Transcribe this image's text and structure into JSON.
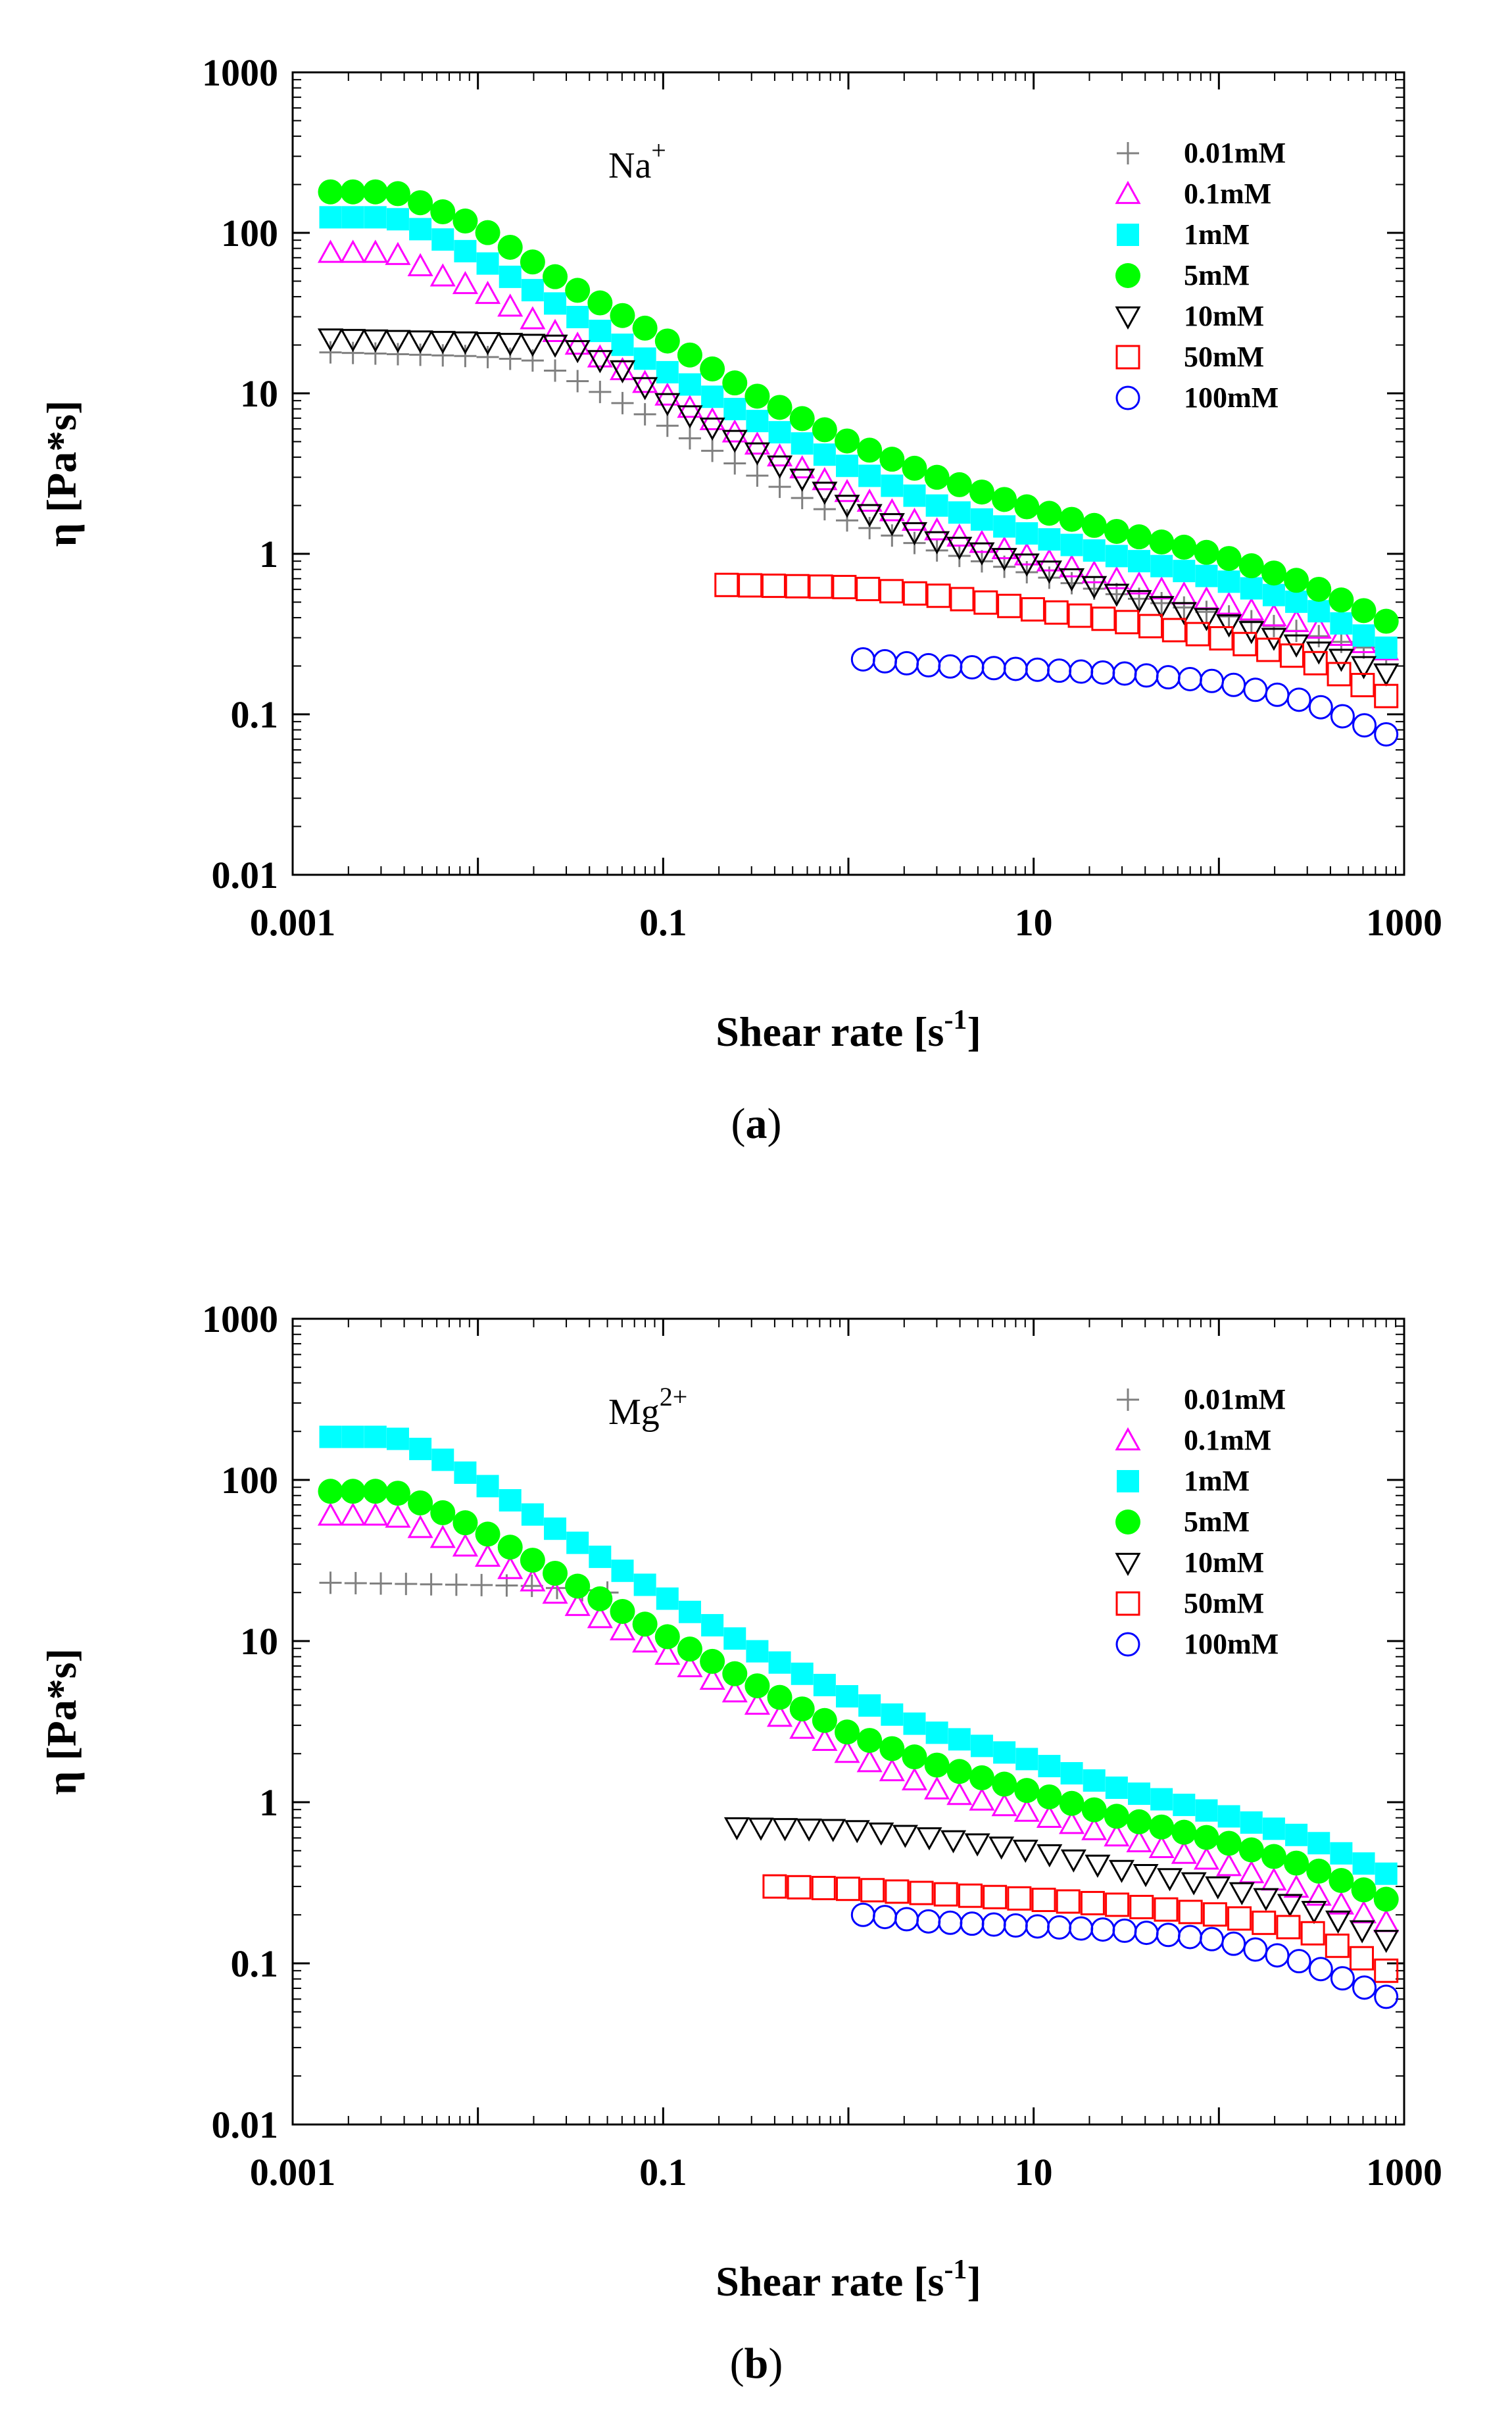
{
  "chart_data": [
    {
      "type": "scatter",
      "panel": "a",
      "caption_letter": "a",
      "ion": {
        "base": "Na",
        "charge": "+"
      },
      "xlabel": "Shear rate [s",
      "xlabel_sup": "-1",
      "xlabel_end": "]",
      "ylabel": "η [Pa*s]",
      "xscale": "log",
      "yscale": "log",
      "xlim": [
        0.001,
        1000
      ],
      "ylim": [
        0.01,
        1000
      ],
      "xticks": [
        0.001,
        0.1,
        10,
        1000
      ],
      "xtick_labels": [
        "0.001",
        "0.1",
        "10",
        "1000"
      ],
      "yticks": [
        0.01,
        0.1,
        1,
        10,
        100,
        1000
      ],
      "ytick_labels": [
        "0.01",
        "0.1",
        "1",
        "10",
        "100",
        "1000"
      ],
      "legend_position": "top-right",
      "series": [
        {
          "name": "0.01mM",
          "marker": "plus",
          "color": "#808080",
          "x_range": [
            0.0016,
            800
          ],
          "points": 48,
          "anchors": [
            [
              0.0016,
              18
            ],
            [
              0.01,
              17
            ],
            [
              0.02,
              16
            ],
            [
              0.04,
              11
            ],
            [
              0.1,
              6.5
            ],
            [
              0.3,
              3.2
            ],
            [
              1,
              1.6
            ],
            [
              3,
              1.05
            ],
            [
              10,
              0.75
            ],
            [
              30,
              0.55
            ],
            [
              100,
              0.42
            ],
            [
              300,
              0.32
            ],
            [
              800,
              0.24
            ]
          ]
        },
        {
          "name": "0.1mM",
          "marker": "triangle-up",
          "color": "#ff00ff",
          "x_range": [
            0.0016,
            800
          ],
          "points": 48,
          "anchors": [
            [
              0.0016,
              75
            ],
            [
              0.0035,
              75
            ],
            [
              0.006,
              55
            ],
            [
              0.01,
              45
            ],
            [
              0.03,
              22
            ],
            [
              0.1,
              10
            ],
            [
              0.3,
              5
            ],
            [
              1,
              2.4
            ],
            [
              3,
              1.4
            ],
            [
              10,
              0.95
            ],
            [
              30,
              0.68
            ],
            [
              100,
              0.5
            ],
            [
              300,
              0.36
            ],
            [
              800,
              0.25
            ]
          ]
        },
        {
          "name": "1mM",
          "marker": "square-filled",
          "color": "#00ffff",
          "x_range": [
            0.0016,
            800
          ],
          "points": 48,
          "anchors": [
            [
              0.0016,
              125
            ],
            [
              0.0035,
              125
            ],
            [
              0.006,
              95
            ],
            [
              0.01,
              70
            ],
            [
              0.03,
              33
            ],
            [
              0.1,
              14
            ],
            [
              0.3,
              7
            ],
            [
              1,
              3.5
            ],
            [
              3,
              2
            ],
            [
              10,
              1.3
            ],
            [
              30,
              0.95
            ],
            [
              100,
              0.7
            ],
            [
              300,
              0.48
            ],
            [
              800,
              0.26
            ]
          ]
        },
        {
          "name": "5mM",
          "marker": "circle-filled",
          "color": "#00ff00",
          "x_range": [
            0.0016,
            800
          ],
          "points": 48,
          "anchors": [
            [
              0.0016,
              180
            ],
            [
              0.0035,
              180
            ],
            [
              0.006,
              140
            ],
            [
              0.01,
              110
            ],
            [
              0.03,
              48
            ],
            [
              0.1,
              22
            ],
            [
              0.3,
              10
            ],
            [
              1,
              5
            ],
            [
              3,
              3
            ],
            [
              10,
              1.9
            ],
            [
              30,
              1.35
            ],
            [
              100,
              0.98
            ],
            [
              300,
              0.65
            ],
            [
              800,
              0.38
            ]
          ]
        },
        {
          "name": "10mM",
          "marker": "triangle-down",
          "color": "#000000",
          "x_range": [
            0.0016,
            800
          ],
          "points": 48,
          "anchors": [
            [
              0.0016,
              22
            ],
            [
              0.01,
              21
            ],
            [
              0.03,
              20
            ],
            [
              0.06,
              14
            ],
            [
              0.1,
              9
            ],
            [
              0.3,
              4.5
            ],
            [
              1,
              2
            ],
            [
              3,
              1.2
            ],
            [
              10,
              0.85
            ],
            [
              30,
              0.55
            ],
            [
              100,
              0.38
            ],
            [
              300,
              0.26
            ],
            [
              800,
              0.18
            ]
          ]
        },
        {
          "name": "50mM",
          "marker": "square-open",
          "color": "#ff0000",
          "x_range": [
            0.22,
            800
          ],
          "points": 29,
          "anchors": [
            [
              0.22,
              0.64
            ],
            [
              1,
              0.62
            ],
            [
              3,
              0.55
            ],
            [
              10,
              0.45
            ],
            [
              30,
              0.38
            ],
            [
              100,
              0.3
            ],
            [
              300,
              0.22
            ],
            [
              800,
              0.13
            ]
          ]
        },
        {
          "name": "100mM",
          "marker": "circle-open",
          "color": "#0000ff",
          "x_range": [
            1.2,
            800
          ],
          "points": 25,
          "anchors": [
            [
              1.2,
              0.22
            ],
            [
              3,
              0.2
            ],
            [
              10,
              0.19
            ],
            [
              30,
              0.18
            ],
            [
              100,
              0.16
            ],
            [
              300,
              0.12
            ],
            [
              800,
              0.075
            ]
          ]
        }
      ]
    },
    {
      "type": "scatter",
      "panel": "b",
      "caption_letter": "b",
      "ion": {
        "base": "Mg",
        "charge": "2+"
      },
      "xlabel": "Shear rate [s",
      "xlabel_sup": "-1",
      "xlabel_end": "]",
      "ylabel": "η [Pa*s]",
      "xscale": "log",
      "yscale": "log",
      "xlim": [
        0.001,
        1000
      ],
      "ylim": [
        0.01,
        1000
      ],
      "xticks": [
        0.001,
        0.1,
        10,
        1000
      ],
      "xtick_labels": [
        "0.001",
        "0.1",
        "10",
        "1000"
      ],
      "yticks": [
        0.01,
        0.1,
        1,
        10,
        100,
        1000
      ],
      "ytick_labels": [
        "0.01",
        "0.1",
        "1",
        "10",
        "100",
        "1000"
      ],
      "legend_position": "top-right",
      "series": [
        {
          "name": "0.01mM",
          "marker": "plus",
          "color": "#808080",
          "x_range": [
            0.0016,
            0.05
          ],
          "points": 12,
          "anchors": [
            [
              0.0016,
              23
            ],
            [
              0.02,
              22
            ],
            [
              0.05,
              20
            ]
          ]
        },
        {
          "name": "0.1mM",
          "marker": "triangle-up",
          "color": "#ff00ff",
          "x_range": [
            0.0016,
            800
          ],
          "points": 48,
          "anchors": [
            [
              0.0016,
              60
            ],
            [
              0.0035,
              60
            ],
            [
              0.006,
              45
            ],
            [
              0.01,
              36
            ],
            [
              0.03,
              18
            ],
            [
              0.1,
              8.5
            ],
            [
              0.3,
              4.2
            ],
            [
              1,
              2
            ],
            [
              3,
              1.2
            ],
            [
              10,
              0.85
            ],
            [
              30,
              0.6
            ],
            [
              100,
              0.42
            ],
            [
              300,
              0.28
            ],
            [
              800,
              0.18
            ]
          ]
        },
        {
          "name": "1mM",
          "marker": "square-filled",
          "color": "#00ffff",
          "x_range": [
            0.0016,
            800
          ],
          "points": 48,
          "anchors": [
            [
              0.0016,
              185
            ],
            [
              0.0035,
              185
            ],
            [
              0.006,
              140
            ],
            [
              0.01,
              100
            ],
            [
              0.03,
              45
            ],
            [
              0.1,
              19
            ],
            [
              0.3,
              9
            ],
            [
              1,
              4.5
            ],
            [
              3,
              2.7
            ],
            [
              10,
              1.8
            ],
            [
              30,
              1.2
            ],
            [
              100,
              0.85
            ],
            [
              300,
              0.6
            ],
            [
              800,
              0.36
            ]
          ]
        },
        {
          "name": "5mM",
          "marker": "circle-filled",
          "color": "#00ff00",
          "x_range": [
            0.0016,
            800
          ],
          "points": 48,
          "anchors": [
            [
              0.0016,
              85
            ],
            [
              0.0035,
              85
            ],
            [
              0.006,
              65
            ],
            [
              0.01,
              50
            ],
            [
              0.03,
              24
            ],
            [
              0.1,
              11
            ],
            [
              0.3,
              5.5
            ],
            [
              1,
              2.7
            ],
            [
              3,
              1.7
            ],
            [
              10,
              1.15
            ],
            [
              30,
              0.8
            ],
            [
              100,
              0.58
            ],
            [
              300,
              0.4
            ],
            [
              800,
              0.25
            ]
          ]
        },
        {
          "name": "10mM",
          "marker": "triangle-down",
          "color": "#000000",
          "x_range": [
            0.25,
            800
          ],
          "points": 28,
          "anchors": [
            [
              0.25,
              0.7
            ],
            [
              1,
              0.68
            ],
            [
              3,
              0.6
            ],
            [
              10,
              0.5
            ],
            [
              30,
              0.38
            ],
            [
              100,
              0.3
            ],
            [
              300,
              0.22
            ],
            [
              800,
              0.14
            ]
          ]
        },
        {
          "name": "50mM",
          "marker": "square-open",
          "color": "#ff0000",
          "x_range": [
            0.4,
            800
          ],
          "points": 26,
          "anchors": [
            [
              0.4,
              0.3
            ],
            [
              1,
              0.29
            ],
            [
              3,
              0.27
            ],
            [
              10,
              0.25
            ],
            [
              30,
              0.23
            ],
            [
              100,
              0.2
            ],
            [
              300,
              0.16
            ],
            [
              800,
              0.09
            ]
          ]
        },
        {
          "name": "100mM",
          "marker": "circle-open",
          "color": "#0000ff",
          "x_range": [
            1.2,
            800
          ],
          "points": 25,
          "anchors": [
            [
              1.2,
              0.2
            ],
            [
              3,
              0.18
            ],
            [
              10,
              0.17
            ],
            [
              30,
              0.16
            ],
            [
              100,
              0.14
            ],
            [
              300,
              0.1
            ],
            [
              800,
              0.062
            ]
          ]
        }
      ]
    }
  ]
}
